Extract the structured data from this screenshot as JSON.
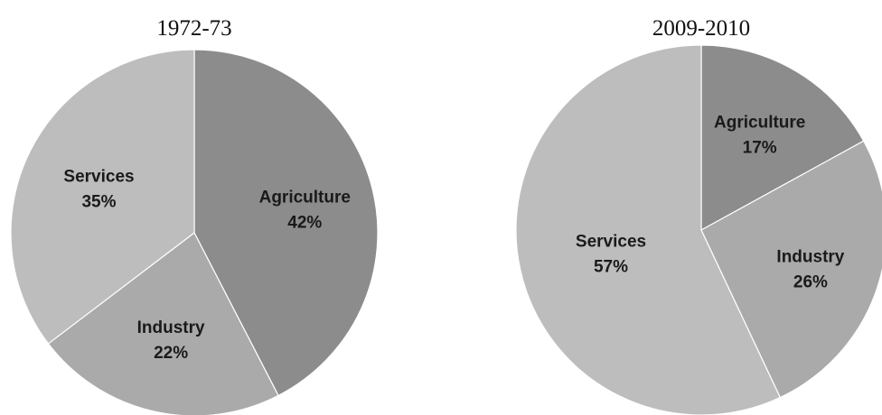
{
  "chart_data": [
    {
      "type": "pie",
      "title": "1972-73",
      "slices": [
        {
          "label": "Agriculture",
          "value": 42,
          "value_label": "42%",
          "color": "#8c8c8c"
        },
        {
          "label": "Industry",
          "value": 22,
          "value_label": "22%",
          "color": "#aaaaaa"
        },
        {
          "label": "Services",
          "value": 35,
          "value_label": "35%",
          "color": "#bdbdbd"
        }
      ]
    },
    {
      "type": "pie",
      "title": "2009-2010",
      "slices": [
        {
          "label": "Agriculture",
          "value": 17,
          "value_label": "17%",
          "color": "#8c8c8c"
        },
        {
          "label": "Industry",
          "value": 26,
          "value_label": "26%",
          "color": "#aaaaaa"
        },
        {
          "label": "Services",
          "value": 57,
          "value_label": "57%",
          "color": "#bdbdbd"
        }
      ]
    }
  ]
}
